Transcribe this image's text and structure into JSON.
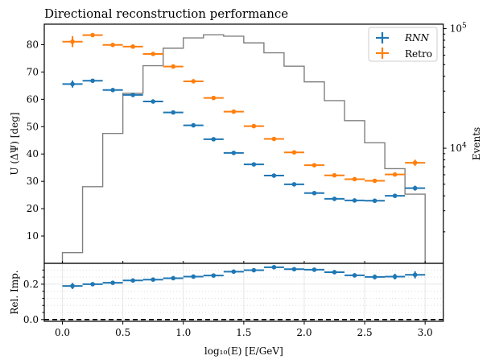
{
  "chart_data": {
    "type": "errorbar",
    "title": "Directional reconstruction performance",
    "xlabel": "log₁₀(E) [E/GeV]",
    "xlim": [
      -0.15,
      3.15
    ],
    "xticks": [
      "0.0",
      "0.5",
      "1.0",
      "1.5",
      "2.0",
      "2.5",
      "3.0"
    ],
    "xtick_values": [
      0.0,
      0.5,
      1.0,
      1.5,
      2.0,
      2.5,
      3.0
    ],
    "bin_edges": [
      0.0,
      0.1667,
      0.3333,
      0.5,
      0.6667,
      0.8333,
      1.0,
      1.1667,
      1.3333,
      1.5,
      1.6667,
      1.8333,
      2.0,
      2.1667,
      2.3333,
      2.5,
      2.6667,
      2.8333,
      3.0
    ],
    "main_panel": {
      "ylabel": "U (ΔΨ) [deg]",
      "ylim": [
        0,
        87.5
      ],
      "yticks": [
        "10",
        "20",
        "30",
        "40",
        "50",
        "60",
        "70",
        "80"
      ],
      "ytick_values": [
        10,
        20,
        30,
        40,
        50,
        60,
        70,
        80
      ],
      "series": [
        {
          "name": "RNN",
          "color": "#1f77b4",
          "values": [
            65.6,
            66.8,
            63.4,
            61.6,
            59.2,
            55.2,
            50.5,
            45.4,
            40.4,
            36.2,
            32.1,
            28.9,
            25.7,
            23.6,
            23.0,
            22.9,
            24.7,
            27.5
          ],
          "errors": [
            1.3,
            0.6,
            0.5,
            0.4,
            0.4,
            0.4,
            0.4,
            0.4,
            0.4,
            0.4,
            0.4,
            0.4,
            0.4,
            0.4,
            0.5,
            0.6,
            0.7,
            0.9
          ]
        },
        {
          "name": "Retro",
          "color": "#ff7f0e",
          "values": [
            81.1,
            83.5,
            79.9,
            79.3,
            76.6,
            72.0,
            66.6,
            60.5,
            55.5,
            50.2,
            45.5,
            40.6,
            35.9,
            32.2,
            30.8,
            30.2,
            32.5,
            36.8
          ],
          "errors": [
            2.0,
            0.7,
            0.5,
            0.4,
            0.4,
            0.4,
            0.4,
            0.4,
            0.4,
            0.4,
            0.4,
            0.4,
            0.4,
            0.4,
            0.5,
            0.6,
            0.7,
            1.1
          ]
        }
      ],
      "histogram": {
        "name": "Events",
        "color": "#808080",
        "ylabel": "Events",
        "yscale": "log",
        "ylim": [
          1090,
          109000
        ],
        "yticks": [
          "10^4",
          "10^5"
        ],
        "ytick_values": [
          10000,
          100000
        ],
        "counts": [
          1340,
          4770,
          13300,
          28800,
          49000,
          68600,
          83600,
          88900,
          86500,
          76000,
          62800,
          48500,
          35900,
          25000,
          17000,
          11100,
          6750,
          4130
        ]
      }
    },
    "ratio_panel": {
      "ylabel": "Rel. Imp.",
      "ylim": [
        -0.01,
        0.318
      ],
      "yticks": [
        "0.0",
        "0.2"
      ],
      "ytick_values": [
        0.0,
        0.2
      ],
      "reference_line": 0.0,
      "series": {
        "name": "Relative improvement",
        "color": "#1f77b4",
        "values": [
          0.19,
          0.2,
          0.208,
          0.221,
          0.226,
          0.234,
          0.243,
          0.249,
          0.271,
          0.279,
          0.296,
          0.285,
          0.282,
          0.268,
          0.25,
          0.241,
          0.243,
          0.253
        ],
        "errors": [
          0.017,
          0.008,
          0.006,
          0.005,
          0.005,
          0.005,
          0.005,
          0.005,
          0.005,
          0.005,
          0.005,
          0.005,
          0.006,
          0.008,
          0.012,
          0.014,
          0.016,
          0.02
        ]
      }
    },
    "legend": {
      "location": "upper-right",
      "entries": [
        {
          "label": "RNN",
          "color": "#1f77b4",
          "italic": true
        },
        {
          "label": "Retro",
          "color": "#ff7f0e",
          "italic": false
        }
      ]
    },
    "grid": true
  }
}
